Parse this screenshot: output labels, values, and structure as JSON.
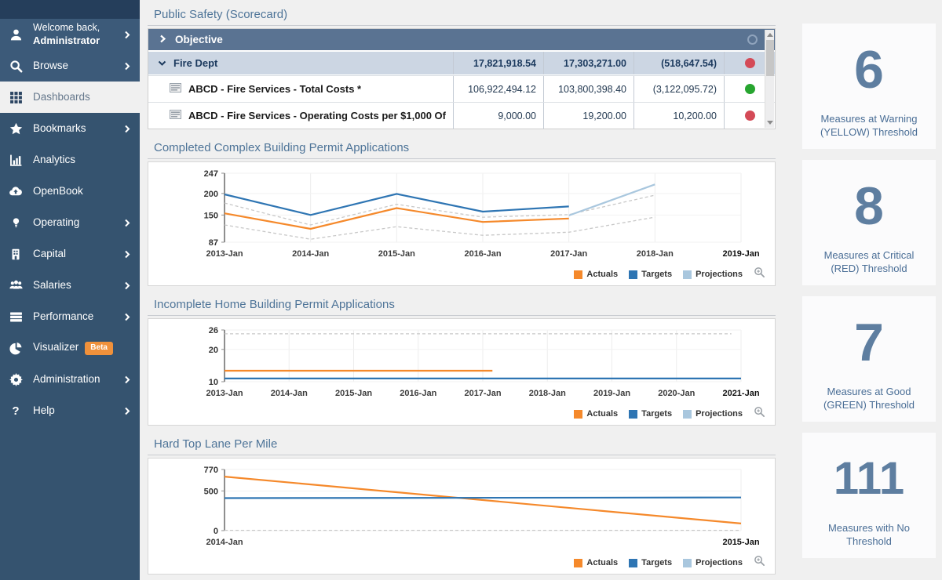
{
  "colors": {
    "sidebar": "#35536F",
    "sidebar_top": "#253E5B",
    "header_bar": "#5A7392",
    "group_row": "#CCD6E3",
    "accent_orange": "#F5892B",
    "accent_blue": "#2E75B3",
    "accent_lightblue": "#A9C7DE",
    "status_red": "#D44A57",
    "status_green": "#27A52F",
    "title_text": "#4E7498"
  },
  "sidebar": {
    "items": [
      {
        "label": "Welcome back,",
        "label2": "Administrator",
        "icon": "user-icon",
        "chevron": true
      },
      {
        "label": "Browse",
        "icon": "search-icon",
        "chevron": true
      },
      {
        "label": "Dashboards",
        "icon": "grid-icon",
        "active": true
      },
      {
        "label": "Bookmarks",
        "icon": "star-icon",
        "chevron": true
      },
      {
        "label": "Analytics",
        "icon": "bar-chart-icon"
      },
      {
        "label": "OpenBook",
        "icon": "cloud-upload-icon"
      },
      {
        "label": "Operating",
        "icon": "lightbulb-icon",
        "chevron": true
      },
      {
        "label": "Capital",
        "icon": "building-icon",
        "chevron": true
      },
      {
        "label": "Salaries",
        "icon": "people-icon",
        "chevron": true
      },
      {
        "label": "Performance",
        "icon": "rows-icon",
        "chevron": true
      },
      {
        "label": "Visualizer",
        "icon": "pie-chart-icon",
        "badge": "Beta"
      },
      {
        "label": "Administration",
        "icon": "gear-icon",
        "chevron": true
      },
      {
        "label": "Help",
        "icon": "question-icon",
        "chevron": true
      }
    ]
  },
  "scorecard": {
    "title": "Public Safety (Scorecard)",
    "header_label": "Objective",
    "rows": [
      {
        "label": "Fire Dept",
        "type": "group",
        "values": [
          "17,821,918.54",
          "17,303,271.00",
          "(518,647.54)"
        ],
        "status": "red"
      },
      {
        "label": "ABCD - Fire Services - Total Costs *",
        "type": "measure",
        "values": [
          "106,922,494.12",
          "103,800,398.40",
          "(3,122,095.72)"
        ],
        "status": "green"
      },
      {
        "label": "ABCD - Fire Services - Operating Costs per $1,000 Of",
        "type": "measure",
        "values": [
          "9,000.00",
          "19,200.00",
          "10,200.00"
        ],
        "status": "red"
      }
    ]
  },
  "legend": {
    "items": [
      {
        "label": "Actuals",
        "color": "#F5892B"
      },
      {
        "label": "Targets",
        "color": "#2E75B3"
      },
      {
        "label": "Projections",
        "color": "#A9C7DE"
      }
    ]
  },
  "chart_data": [
    {
      "type": "line",
      "title": "Completed Complex Building Permit Applications",
      "xlabel": "",
      "ylabel": "",
      "xlim": [
        2013,
        2019
      ],
      "ylim": [
        87,
        247
      ],
      "y_ticks": [
        87,
        150,
        200,
        247
      ],
      "x_ticks": [
        "2013-Jan",
        "2014-Jan",
        "2015-Jan",
        "2016-Jan",
        "2017-Jan",
        "2018-Jan",
        "2019-Jan"
      ],
      "grid": true,
      "legend_position": "bottom-right",
      "series": [
        {
          "name": "Actuals",
          "color": "#F5892B",
          "points": [
            [
              2013,
              154
            ],
            [
              2014,
              118
            ],
            [
              2015,
              166
            ],
            [
              2016,
              134
            ],
            [
              2017,
              142
            ]
          ]
        },
        {
          "name": "Targets",
          "color": "#2E75B3",
          "points": [
            [
              2013,
              198
            ],
            [
              2014,
              150
            ],
            [
              2015,
              199
            ],
            [
              2016,
              158
            ],
            [
              2017,
              170
            ]
          ]
        },
        {
          "name": "Projections",
          "color": "#A9C7DE",
          "points": [
            [
              2017,
              149
            ],
            [
              2018,
              221
            ]
          ]
        },
        {
          "name": "Projection upper bound",
          "color": "#C8C8C8",
          "dash": true,
          "points": [
            [
              2013,
              178
            ],
            [
              2014,
              127
            ],
            [
              2015,
              175
            ],
            [
              2016,
              145
            ],
            [
              2017,
              151
            ],
            [
              2018,
              196
            ]
          ]
        },
        {
          "name": "Projection lower bound",
          "color": "#C8C8C8",
          "dash": true,
          "points": [
            [
              2013,
              127
            ],
            [
              2014,
              94
            ],
            [
              2015,
              123
            ],
            [
              2016,
              103
            ],
            [
              2017,
              110
            ],
            [
              2018,
              145
            ]
          ]
        }
      ]
    },
    {
      "type": "line",
      "title": "Incomplete Home Building Permit Applications",
      "xlabel": "",
      "ylabel": "",
      "xlim": [
        2013,
        2021
      ],
      "ylim": [
        10,
        26
      ],
      "y_ticks": [
        10,
        20,
        26
      ],
      "x_ticks": [
        "2013-Jan",
        "2014-Jan",
        "2015-Jan",
        "2016-Jan",
        "2017-Jan",
        "2018-Jan",
        "2019-Jan",
        "2020-Jan",
        "2021-Jan"
      ],
      "grid": true,
      "legend_position": "bottom-right",
      "series": [
        {
          "name": "Actuals",
          "color": "#F5892B",
          "points": [
            [
              2013,
              13.4
            ],
            [
              2017.15,
              13.4
            ]
          ]
        },
        {
          "name": "Targets",
          "color": "#2E75B3",
          "points": [
            [
              2013,
              11
            ],
            [
              2021,
              11
            ]
          ]
        },
        {
          "name": "Projection upper bound",
          "color": "#C8C8C8",
          "dash": true,
          "points": [
            [
              2013,
              24.8
            ],
            [
              2020.85,
              24.8
            ]
          ]
        }
      ]
    },
    {
      "type": "line",
      "title": "Hard Top Lane Per Mile",
      "xlabel": "",
      "ylabel": "",
      "xlim": [
        2014,
        2015
      ],
      "ylim": [
        0,
        770
      ],
      "y_ticks": [
        0,
        500,
        770
      ],
      "x_ticks": [
        "2014-Jan",
        "2015-Jan"
      ],
      "grid": true,
      "legend_position": "bottom-right",
      "series": [
        {
          "name": "Actuals",
          "color": "#F5892B",
          "points": [
            [
              2014,
              680
            ],
            [
              2015,
              90
            ]
          ]
        },
        {
          "name": "Targets",
          "color": "#2E75B3",
          "points": [
            [
              2014,
              410
            ],
            [
              2015,
              418
            ]
          ]
        },
        {
          "name": "Projection lower bound",
          "color": "#C8C8C8",
          "dash": true,
          "points": [
            [
              2014,
              4
            ],
            [
              2015,
              4
            ]
          ]
        }
      ]
    }
  ],
  "cards": [
    {
      "value": "6",
      "label": "Measures at Warning (YELLOW) Threshold"
    },
    {
      "value": "8",
      "label": "Measures at Critical (RED) Threshold"
    },
    {
      "value": "7",
      "label": "Measures at Good (GREEN) Threshold"
    },
    {
      "value": "111",
      "label": "Measures with No Threshold"
    }
  ]
}
